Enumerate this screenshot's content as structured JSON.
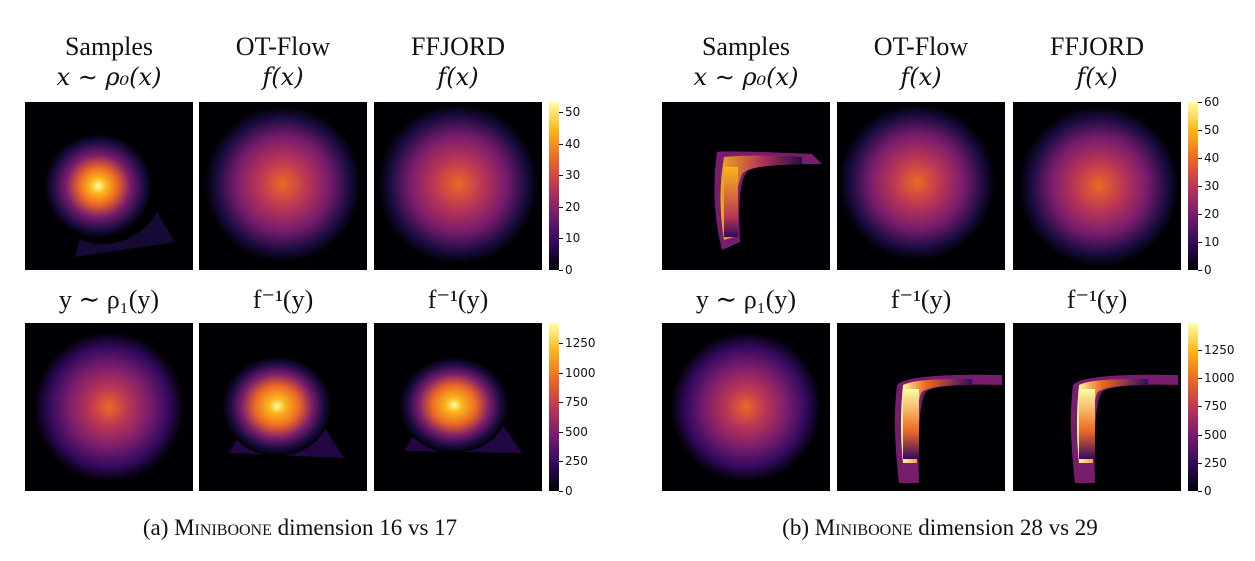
{
  "figure_a": {
    "headers_top": [
      {
        "line1": "Samples",
        "line2": "x ∼ ρ₀(x)"
      },
      {
        "line1": "OT-Flow",
        "line2": "f(x)"
      },
      {
        "line1": "FFJORD",
        "line2": "f(x)"
      }
    ],
    "headers_bottom": [
      "y ∼ ρ₁(y)",
      "f⁻¹(y)",
      "f⁻¹(y)"
    ],
    "colorbar_top_ticks": [
      "50",
      "40",
      "30",
      "20",
      "10",
      "0"
    ],
    "colorbar_bottom_ticks": [
      "1250",
      "1000",
      "750",
      "500",
      "250",
      "0"
    ],
    "caption_prefix": "(a) ",
    "caption_name": "Miniboone",
    "caption_suffix": " dimension 16 vs 17"
  },
  "figure_b": {
    "headers_top": [
      {
        "line1": "Samples",
        "line2": "x ∼ ρ₀(x)"
      },
      {
        "line1": "OT-Flow",
        "line2": "f(x)"
      },
      {
        "line1": "FFJORD",
        "line2": "f(x)"
      }
    ],
    "headers_bottom": [
      "y ∼ ρ₁(y)",
      "f⁻¹(y)",
      "f⁻¹(y)"
    ],
    "colorbar_top_ticks": [
      "60",
      "50",
      "40",
      "30",
      "20",
      "10",
      "0"
    ],
    "colorbar_bottom_ticks": [
      "1250",
      "1000",
      "750",
      "500",
      "250",
      "0"
    ],
    "caption_prefix": "(b) ",
    "caption_name": "Miniboone",
    "caption_suffix": " dimension 28 vs 29"
  },
  "colormap": "inferno",
  "colormap_colors": [
    "#000004",
    "#320a5e",
    "#781c6d",
    "#bc3754",
    "#ed6925",
    "#fbb61a",
    "#fcffa4"
  ]
}
